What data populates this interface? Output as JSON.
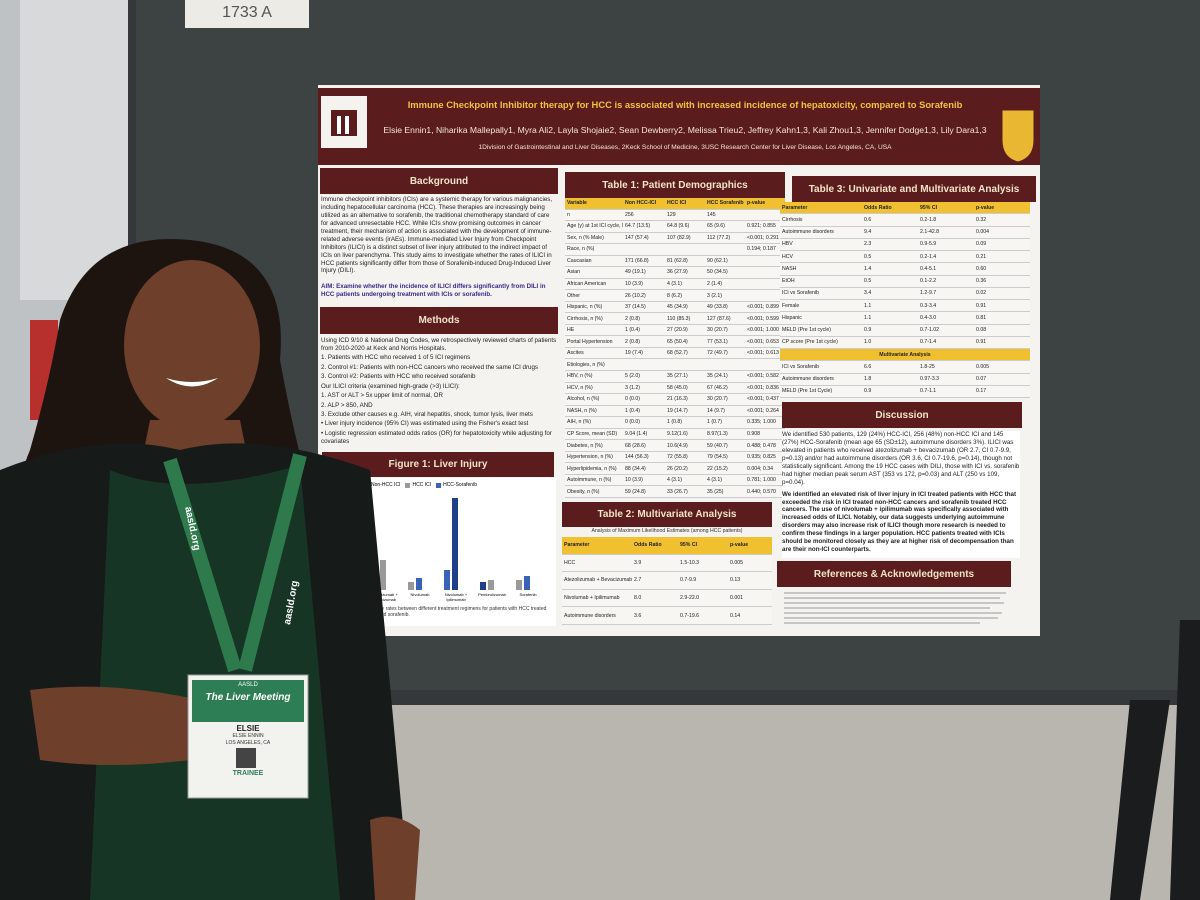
{
  "sign": "1733 A",
  "poster": {
    "title": "Immune Checkpoint Inhibitor therapy for HCC is associated with increased incidence of hepatoxicity, compared to Sorafenib",
    "authors": "Elsie Ennin1, Niharika Mallepally1, Myra Ali2, Layla Shojaie2, Sean Dewberry2, Melissa Trieu2, Jeffrey Kahn1,3, Kali Zhou1,3, Jennifer Dodge1,3, Lily Dara1,3",
    "affiliations": "1Division of Gastrointestinal and Liver Diseases, 2Keck School of Medicine, 3USC Research Center for Liver Disease, Los Angeles, CA, USA",
    "background": {
      "heading": "Background",
      "text": "Immune checkpoint inhibitors (ICIs) are a systemic therapy for various malignancies, including hepatocellular carcinoma (HCC). These therapies are increasingly being utilized as an alternative to sorafenib, the traditional chemotherapy standard of care for advanced unresectable HCC. While ICIs show promising outcomes in cancer treatment, their mechanism of action is associated with the development of immune-related adverse events (irAEs). Immune-mediated Liver Injury from Checkpoint Inhibitors (ILICI) is a distinct subset of liver injury attributed to the indirect impact of ICIs on liver parenchyma. This study aims to investigate whether the rates of ILICI in HCC patients significantly differ from those of Sorafenib-induced Drug-Induced Liver Injury (DILI).",
      "aim": "AIM: Examine whether the incidence of ILICI differs significantly from DILI in HCC patients undergoing treatment with ICIs or sorafenib."
    },
    "methods": {
      "heading": "Methods",
      "lines": [
        "Using ICD 9/10 & National Drug Codes, we retrospectively reviewed charts of patients from 2010-2020 at Keck and Norris Hospitals.",
        "1. Patients with HCC who received 1 of 5 ICI regimens",
        "2. Control #1: Patients with non-HCC cancers who received the same ICI drugs",
        "3. Control #2: Patients with HCC who received sorafenib",
        "Our ILICI criteria (examined high-grade (>3) ILICI):",
        "1. AST or ALT > 5x upper limit of normal, OR",
        "2. ALP > 850, AND",
        "3. Exclude other causes e.g. AIH, viral hepatitis, shock, tumor lysis, liver mets",
        "• Liver injury incidence (95% CI) was estimated using the Fisher's exact test",
        "• Logistic regression estimated odds ratios (OR) for hepatotoxicity while adjusting for covariates"
      ]
    },
    "figure1": {
      "heading": "Figure 1: Liver Injury",
      "legend": [
        "Non-HCC ICI",
        "HCC ICI",
        "HCC-Sorafenib"
      ],
      "categories": [
        "Atezolizumab + Bevacizumab",
        "Nivolumab",
        "Nivolumab + Ipilimumab",
        "Pembrolizumab",
        "Sorafenib"
      ],
      "caption": "Liver injury rates between different treatment regimens for patients with HCC treated with ICI and sorafenib."
    },
    "table1": {
      "heading": "Table 1: Patient Demographics",
      "columns": [
        "Variable",
        "Non HCC-ICI",
        "HCC ICI",
        "HCC Sorafenib",
        "p-value"
      ],
      "rows": [
        [
          "n",
          "256",
          "129",
          "145",
          ""
        ],
        [
          "Age (y) at 1st ICI cycle, Mean (SD)",
          "64.7 (13.5)",
          "64.8 (9.6)",
          "65 (9.6)",
          "0.921; 0.855"
        ],
        [
          "Sex, n (% Male)",
          "147 (57.4)",
          "107 (82.9)",
          "112 (77.2)",
          "<0.001; 0.291"
        ],
        [
          "Race, n (%)",
          "",
          "",
          "",
          "0.194; 0.187"
        ],
        [
          "Caucasian",
          "171 (66.8)",
          "81 (62.8)",
          "90 (62.1)",
          ""
        ],
        [
          "Asian",
          "49 (19.1)",
          "36 (27.9)",
          "50 (34.5)",
          ""
        ],
        [
          "African American",
          "10 (3.9)",
          "4 (3.1)",
          "2 (1.4)",
          ""
        ],
        [
          "Other",
          "26 (10.2)",
          "8 (6.2)",
          "3 (2.1)",
          ""
        ],
        [
          "Hispanic, n (%)",
          "37 (14.5)",
          "45 (34.9)",
          "49 (33.8)",
          "<0.001; 0.899"
        ],
        [
          "Cirrhosis, n (%)",
          "2 (0.8)",
          "110 (85.3)",
          "127 (87.6)",
          "<0.001; 0.599"
        ],
        [
          "HE",
          "1 (0.4)",
          "27 (20.9)",
          "30 (20.7)",
          "<0.001; 1.000"
        ],
        [
          "Portal Hypertension",
          "2 (0.8)",
          "65 (50.4)",
          "77 (53.1)",
          "<0.001; 0.653"
        ],
        [
          "Ascites",
          "19 (7.4)",
          "68 (52.7)",
          "72 (49.7)",
          "<0.001; 0.613"
        ],
        [
          "Etiologies, n (%)",
          "",
          "",
          "",
          ""
        ],
        [
          "HBV, n (%)",
          "5 (2.0)",
          "35 (27.1)",
          "35 (24.1)",
          "<0.001; 0.582"
        ],
        [
          "HCV, n (%)",
          "3 (1.2)",
          "58 (45.0)",
          "67 (46.2)",
          "<0.001; 0.836"
        ],
        [
          "Alcohol, n (%)",
          "0 (0.0)",
          "21 (16.3)",
          "30 (20.7)",
          "<0.001; 0.437"
        ],
        [
          "NASH, n (%)",
          "1 (0.4)",
          "19 (14.7)",
          "14 (9.7)",
          "<0.001; 0.264"
        ],
        [
          "AIH, n (%)",
          "0 (0.0)",
          "1 (0.8)",
          "1 (0.7)",
          "0.335; 1.000"
        ],
        [
          "CP Score, mean (SD)",
          "9.04 (1.4)",
          "9.12(1.6)",
          "8.97(1.3)",
          "0.908"
        ],
        [
          "Diabetes, n (%)",
          "68 (28.6)",
          "10.6(4.9)",
          "59 (40.7)",
          "0.488; 0.478"
        ],
        [
          "Hypertension, n (%)",
          "144 (56.3)",
          "72 (55.8)",
          "79 (54.5)",
          "0.935; 0.825"
        ],
        [
          "Hyperlipidemia, n (%)",
          "88 (34.4)",
          "26 (20.2)",
          "22 (15.2)",
          "0.004; 0.34"
        ],
        [
          "Autoimmune, n (%)",
          "10 (3.9)",
          "4 (3.1)",
          "4 (3.1)",
          "0.781; 1.000"
        ],
        [
          "Obesity, n (%)",
          "59 (24.8)",
          "33 (26.7)",
          "35 (25)",
          "0.440; 0.570"
        ]
      ]
    },
    "table2": {
      "heading": "Table 2: Multivariate Analysis",
      "subtitle": "Analysis of Maximum Likelihood Estimates (among HCC patients)",
      "columns": [
        "Parameter",
        "Odds Ratio",
        "95% CI",
        "p-value"
      ],
      "rows": [
        [
          "HCC",
          "3.9",
          "1.5-10.3",
          "0.005"
        ],
        [
          "Atezolizumab + Bevacizumab",
          "2.7",
          "0.7-9.9",
          "0.13"
        ],
        [
          "Nivolumab + Ipilimumab",
          "8.0",
          "2.9-22.0",
          "0.001"
        ],
        [
          "Autoimmune disorders",
          "3.6",
          "0.7-19.6",
          "0.14"
        ]
      ]
    },
    "table3": {
      "heading": "Table 3: Univariate and Multivariate Analysis",
      "columns": [
        "Parameter",
        "Odds Ratio",
        "95% CI",
        "p-value"
      ],
      "rows": [
        [
          "Cirrhosis",
          "0.6",
          "0.2-1.8",
          "0.32"
        ],
        [
          "Autoimmune disorders",
          "9.4",
          "2.1-42.8",
          "0.004"
        ],
        [
          "HBV",
          "2.3",
          "0.9-5.9",
          "0.09"
        ],
        [
          "HCV",
          "0.5",
          "0.2-1.4",
          "0.21"
        ],
        [
          "NASH",
          "1.4",
          "0.4-5.1",
          "0.60"
        ],
        [
          "EtOH",
          "0.5",
          "0.1-2.2",
          "0.36"
        ],
        [
          "ICI vs Sorafenib",
          "3.4",
          "1.2-9.7",
          "0.02"
        ],
        [
          "Female",
          "1.1",
          "0.3-3.4",
          "0.91"
        ],
        [
          "Hispanic",
          "1.1",
          "0.4-3.0",
          "0.81"
        ],
        [
          "MELD (Pre 1st cycle)",
          "0.9",
          "0.7-1.02",
          "0.08"
        ],
        [
          "CP score (Pre 1st cycle)",
          "1.0",
          "0.7-1.4",
          "0.91"
        ]
      ],
      "multivariate": {
        "label": "Multivariate Analysis",
        "rows": [
          [
            "ICI vs Sorafenib",
            "6.6",
            "1.8-25",
            "0.005"
          ],
          [
            "Autoimmune disorders",
            "1.8",
            "0.97-3.3",
            "0.07"
          ],
          [
            "MELD (Pre 1st Cycle)",
            "0.9",
            "0.7-1.1",
            "0.17"
          ]
        ]
      }
    },
    "discussion": {
      "heading": "Discussion",
      "paragraphs": [
        "We identified 530 patients, 129 (24%) HCC-ICI, 256 (48%) non-HCC ICI and 145 (27%) HCC-Sorafenib (mean age 65 (SD±12), autoimmune disorders 3%). ILICI was elevated in patients who received atezolizumab + bevacizumab (OR 2.7, CI 0.7-9.9, p=0.13) and/or had autoimmune disorders (OR 3.6, CI 0.7-19.6, p=0.14), though not statistically significant. Among the 19 HCC cases with DILI, those with ICI vs. sorafenib had higher median peak serum AST (353 vs 172, p=0.03) and ALT (250 vs 109, p=0.04).",
        "We identified an elevated risk of liver injury in ICI treated patients with HCC that exceeded the risk in ICI treated non-HCC cancers and sorafenib treated HCC cancers. The use of nivolumab + ipilimumab was specifically associated with increased odds of ILICI. Notably, our data suggests underlying autoimmune disorders may also increase risk of ILICI though more research is needed to confirm these findings in a larger population. HCC patients treated with ICIs should be monitored closely as they are at higher risk of decompensation than are their non-ICI counterparts."
      ]
    },
    "references": {
      "heading": "References & Acknowledgements"
    }
  },
  "badge": {
    "org": "AASLD",
    "event": "The Liver Meeting",
    "first_name": "ELSIE",
    "full_name": "ELSIE ENNIN",
    "location": "LOS ANGELES, CA",
    "role": "TRAINEE"
  },
  "lanyard": "aasld.org"
}
